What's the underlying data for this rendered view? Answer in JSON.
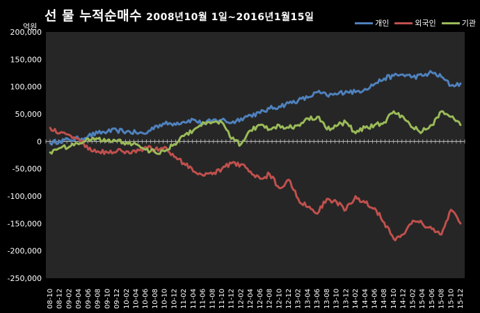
{
  "title": {
    "main": "선 물 누적순매수",
    "period": "2008년10월 1일~2016년1월15일"
  },
  "unit_label": "억원",
  "legend": [
    {
      "name": "개인",
      "color": "#4f81bd"
    },
    {
      "name": "외국인",
      "color": "#c0504d"
    },
    {
      "name": "기관",
      "color": "#9bbb59"
    }
  ],
  "chart_data": {
    "type": "line",
    "ylim": [
      -250000,
      200000
    ],
    "yticks": [
      "200,000",
      "150,000",
      "100,000",
      "50,000",
      "0",
      "-50,000",
      "-100,000",
      "-150,000",
      "-200,000",
      "-250,000"
    ],
    "ytick_values": [
      200000,
      150000,
      100000,
      50000,
      0,
      -50000,
      -100000,
      -150000,
      -200000,
      -250000
    ],
    "grid": false,
    "legend_position": "top-right",
    "categories": [
      "08-10",
      "08-12",
      "09-02",
      "09-04",
      "09-06",
      "09-08",
      "09-10",
      "09-12",
      "10-02",
      "10-04",
      "10-06",
      "10-08",
      "10-10",
      "10-12",
      "11-02",
      "11-04",
      "11-06",
      "11-08",
      "11-10",
      "11-12",
      "12-02",
      "12-04",
      "12-06",
      "12-08",
      "12-10",
      "12-12",
      "13-02",
      "13-04",
      "13-06",
      "13-08",
      "13-10",
      "13-12",
      "14-02",
      "14-04",
      "14-06",
      "14-08",
      "14-10",
      "14-12",
      "15-02",
      "15-04",
      "15-06",
      "15-08",
      "15-10",
      "15-12"
    ],
    "series": [
      {
        "name": "개인",
        "color": "#4f81bd",
        "values": [
          -3000,
          1000,
          3000,
          5000,
          10000,
          15000,
          18000,
          20000,
          18000,
          16000,
          14000,
          28000,
          32000,
          33000,
          36000,
          40000,
          32000,
          38000,
          40000,
          34000,
          42000,
          48000,
          52000,
          60000,
          64000,
          70000,
          75000,
          80000,
          90000,
          84000,
          86000,
          92000,
          90000,
          96000,
          105000,
          115000,
          120000,
          122000,
          118000,
          120000,
          126000,
          118000,
          102000,
          106000
        ]
      },
      {
        "name": "외국인",
        "color": "#c0504d",
        "values": [
          25000,
          15000,
          12000,
          5000,
          -15000,
          -18000,
          -20000,
          -18000,
          -18000,
          -20000,
          -10000,
          -15000,
          -10000,
          -28000,
          -40000,
          -55000,
          -62000,
          -60000,
          -50000,
          -40000,
          -42000,
          -55000,
          -68000,
          -60000,
          -85000,
          -70000,
          -105000,
          -120000,
          -132000,
          -105000,
          -110000,
          -125000,
          -100000,
          -112000,
          -122000,
          -148000,
          -178000,
          -170000,
          -145000,
          -150000,
          -160000,
          -170000,
          -125000,
          -150000
        ]
      },
      {
        "name": "기관",
        "color": "#9bbb59",
        "values": [
          -20000,
          -12000,
          -10000,
          -5000,
          5000,
          5000,
          2000,
          0,
          -2000,
          -5000,
          -15000,
          -20000,
          -18000,
          -5000,
          10000,
          20000,
          35000,
          35000,
          35000,
          5000,
          -5000,
          20000,
          30000,
          22000,
          30000,
          25000,
          30000,
          42000,
          45000,
          22000,
          28000,
          35000,
          15000,
          25000,
          30000,
          35000,
          55000,
          45000,
          25000,
          18000,
          30000,
          55000,
          45000,
          30000
        ]
      }
    ]
  }
}
